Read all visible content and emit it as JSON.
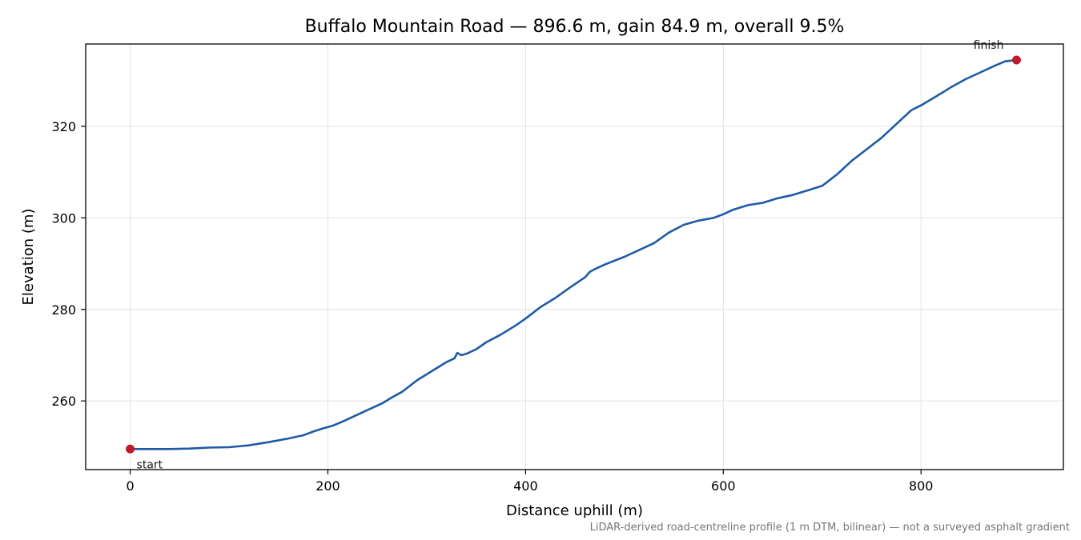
{
  "chart_data": {
    "type": "line",
    "title": "Buffalo Mountain Road — 896.6 m, gain 84.9 m, overall 9.5%",
    "xlabel": "Distance uphill (m)",
    "ylabel": "Elevation (m)",
    "xlim": [
      -45,
      944
    ],
    "ylim": [
      245,
      338
    ],
    "xticks": [
      0,
      200,
      400,
      600,
      800
    ],
    "yticks": [
      260,
      280,
      300,
      320
    ],
    "grid": true,
    "line_color": "#1f5aa6",
    "marker_color": "#c01b2c",
    "series": [
      {
        "x": [
          0,
          20,
          40,
          60,
          80,
          100,
          120,
          140,
          160,
          175,
          185,
          195,
          205,
          215,
          225,
          240,
          255,
          265,
          275,
          290,
          305,
          320,
          328,
          331,
          335,
          340,
          350,
          360,
          375,
          390,
          400,
          415,
          430,
          445,
          460,
          465,
          470,
          480,
          500,
          515,
          530,
          545,
          560,
          575,
          590,
          600,
          610,
          625,
          640,
          655,
          670,
          685,
          700,
          715,
          730,
          745,
          760,
          775,
          790,
          800,
          815,
          830,
          845,
          860,
          875,
          885,
          896.6
        ],
        "y": [
          249.5,
          249.5,
          249.5,
          249.6,
          249.8,
          249.9,
          250.3,
          251.0,
          251.8,
          252.5,
          253.3,
          254.0,
          254.6,
          255.5,
          256.5,
          258.0,
          259.5,
          260.8,
          262.0,
          264.5,
          266.5,
          268.5,
          269.3,
          270.5,
          270.0,
          270.3,
          271.3,
          272.8,
          274.5,
          276.5,
          278.0,
          280.5,
          282.5,
          284.8,
          287.0,
          288.2,
          288.8,
          289.8,
          291.5,
          293.0,
          294.5,
          296.8,
          298.5,
          299.4,
          300.0,
          300.8,
          301.8,
          302.8,
          303.3,
          304.3,
          305.0,
          306.0,
          307.0,
          309.5,
          312.5,
          315.0,
          317.5,
          320.5,
          323.5,
          324.6,
          326.5,
          328.5,
          330.3,
          331.8,
          333.3,
          334.2,
          334.5
        ]
      }
    ],
    "annotations": [
      {
        "text": "start",
        "x": 0,
        "y": 249.5
      },
      {
        "text": "finish",
        "x": 896.6,
        "y": 334.5
      }
    ],
    "footnote": "LiDAR-derived road-centreline profile (1 m DTM, bilinear) — not a surveyed asphalt gradient"
  }
}
